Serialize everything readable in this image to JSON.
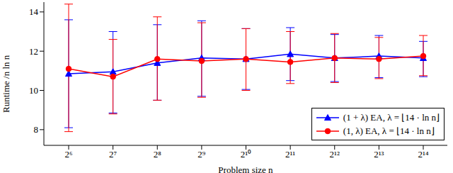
{
  "chart_data": {
    "type": "line",
    "x_label": "Problem size n",
    "y_label": "Runtime /n ln n",
    "categories": [
      "2⁶",
      "2⁷",
      "2⁸",
      "2⁹",
      "2¹⁰",
      "2¹¹",
      "2¹²",
      "2¹³",
      "2¹⁴"
    ],
    "ylim": [
      7.2,
      14.5
    ],
    "yticks": [
      8,
      10,
      12,
      14
    ],
    "grid": false,
    "legend": "lower right",
    "series": [
      {
        "name": "(1 + λ) EA, λ = ⌊14 · ln n⌋",
        "color": "#0000ff",
        "marker": "triangle",
        "line_style": "solid",
        "values": [
          10.85,
          10.95,
          11.4,
          11.65,
          11.6,
          11.85,
          11.65,
          11.75,
          11.65
        ],
        "lower": [
          8.1,
          8.85,
          9.5,
          9.7,
          10.05,
          10.5,
          10.45,
          10.65,
          10.7
        ],
        "upper": [
          13.6,
          13.0,
          13.35,
          13.55,
          13.15,
          13.2,
          12.85,
          12.8,
          12.5
        ]
      },
      {
        "name": "(1, λ) EA, λ = ⌊14 · ln n⌋",
        "color": "#ff0000",
        "marker": "circle",
        "line_style": "solid",
        "values": [
          11.1,
          10.7,
          11.6,
          11.5,
          11.6,
          11.45,
          11.65,
          11.6,
          11.75
        ],
        "lower": [
          7.9,
          8.8,
          9.5,
          9.65,
          10.0,
          10.35,
          10.4,
          10.6,
          10.75
        ],
        "upper": [
          14.4,
          12.6,
          13.75,
          13.45,
          13.15,
          13.0,
          12.9,
          12.7,
          12.8
        ]
      }
    ]
  }
}
